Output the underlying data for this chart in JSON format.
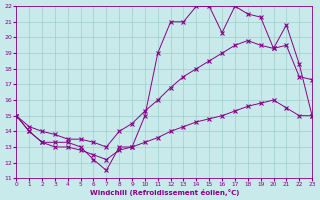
{
  "xlabel": "Windchill (Refroidissement éolien,°C)",
  "xlim": [
    0,
    23
  ],
  "ylim": [
    11,
    22
  ],
  "yticks": [
    11,
    12,
    13,
    14,
    15,
    16,
    17,
    18,
    19,
    20,
    21,
    22
  ],
  "xticks": [
    0,
    1,
    2,
    3,
    4,
    5,
    6,
    7,
    8,
    9,
    10,
    11,
    12,
    13,
    14,
    15,
    16,
    17,
    18,
    19,
    20,
    21,
    22,
    23
  ],
  "background_color": "#c8eaea",
  "line_color": "#880088",
  "grid_color": "#a0cccc",
  "line1_x": [
    0,
    1,
    2,
    3,
    4,
    5,
    6,
    7,
    8,
    9,
    10,
    11,
    12,
    13,
    14,
    15,
    16,
    17,
    18,
    19,
    20,
    21,
    22,
    23
  ],
  "line1_y": [
    15.0,
    14.0,
    13.3,
    13.3,
    13.3,
    13.0,
    12.2,
    11.5,
    13.0,
    13.0,
    15.0,
    19.0,
    21.0,
    21.0,
    22.0,
    22.0,
    20.3,
    22.0,
    21.5,
    21.3,
    19.3,
    20.8,
    18.3,
    15.0
  ],
  "line2_x": [
    0,
    1,
    2,
    3,
    4,
    5,
    6,
    7,
    8,
    9,
    10,
    11,
    12,
    13,
    14,
    15,
    16,
    17,
    18,
    19,
    20,
    21,
    22,
    23
  ],
  "line2_y": [
    15.0,
    14.0,
    13.3,
    13.0,
    13.0,
    12.8,
    12.5,
    12.2,
    12.8,
    13.0,
    13.3,
    13.6,
    14.0,
    14.3,
    14.6,
    14.8,
    15.0,
    15.3,
    15.6,
    15.8,
    16.0,
    15.5,
    15.0,
    15.0
  ],
  "line3_x": [
    0,
    1,
    2,
    3,
    4,
    5,
    6,
    7,
    8,
    9,
    10,
    11,
    12,
    13,
    14,
    15,
    16,
    17,
    18,
    19,
    20,
    21,
    22,
    23
  ],
  "line3_y": [
    15.0,
    14.3,
    14.0,
    13.8,
    13.5,
    13.5,
    13.3,
    13.0,
    14.0,
    14.5,
    15.3,
    16.0,
    16.8,
    17.5,
    18.0,
    18.5,
    19.0,
    19.5,
    19.8,
    19.5,
    19.3,
    19.5,
    17.5,
    17.3
  ]
}
